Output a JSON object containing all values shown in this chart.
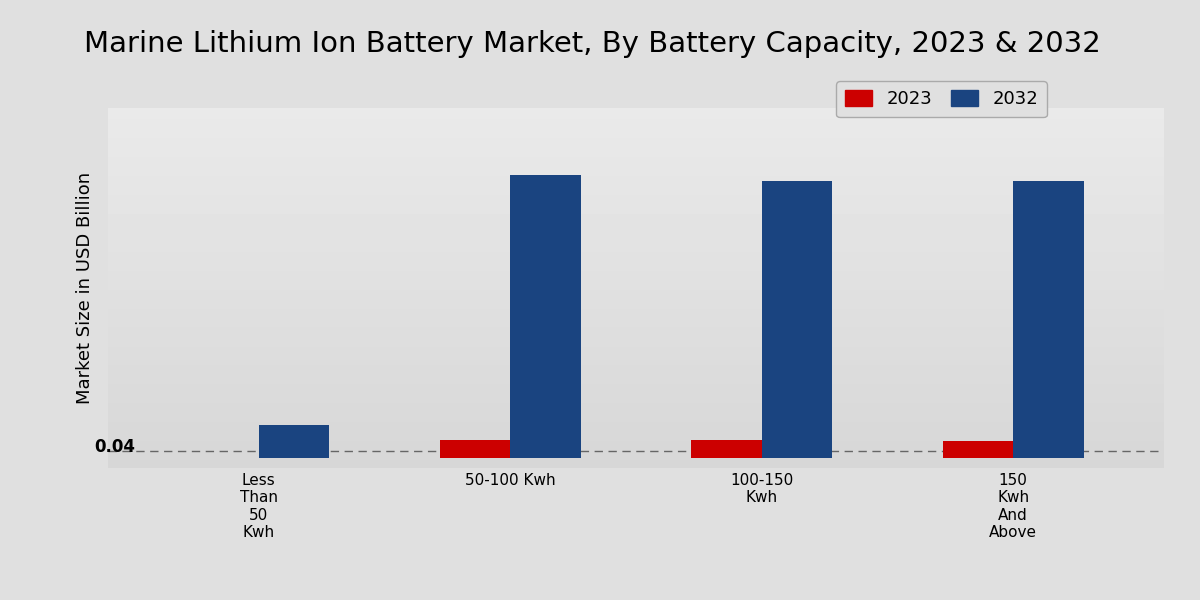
{
  "title": "Marine Lithium Ion Battery Market, By Battery Capacity, 2023 & 2032",
  "ylabel": "Market Size in USD Billion",
  "categories": [
    "Less\nThan\n50\nKwh",
    "50-100 Kwh",
    "100-150\nKwh",
    "150\nKwh\nAnd\nAbove"
  ],
  "values_2023": [
    0.0,
    0.055,
    0.055,
    0.05
  ],
  "values_2032": [
    0.1,
    0.85,
    0.83,
    0.83
  ],
  "color_2023": "#cc0000",
  "color_2032": "#1a4480",
  "annotation_text": "0.04",
  "dashed_line_y": 0.02,
  "ylim": [
    -0.03,
    1.05
  ],
  "bar_width": 0.28,
  "title_fontsize": 21,
  "legend_fontsize": 13,
  "axis_label_fontsize": 13,
  "tick_fontsize": 11,
  "bg_light": "#e8e8e8",
  "bg_dark": "#d0d0d0",
  "legend_labels": [
    "2023",
    "2032"
  ]
}
